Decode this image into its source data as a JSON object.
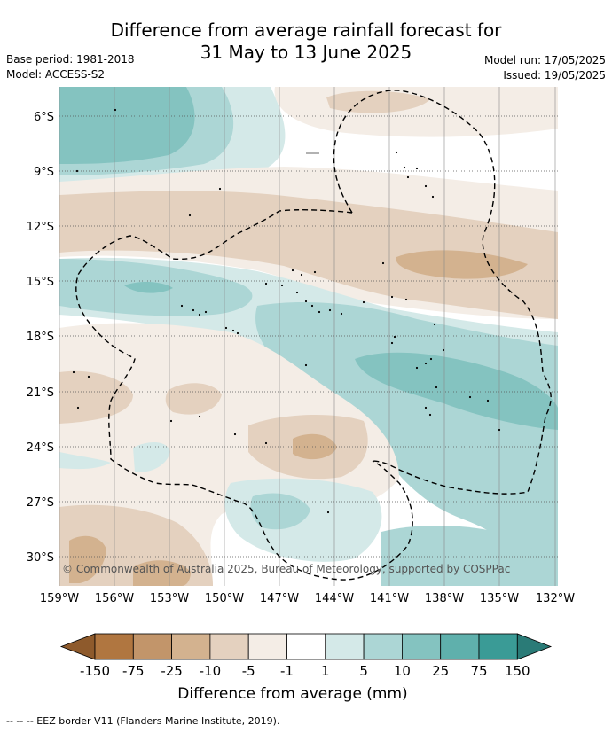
{
  "title": {
    "line1": "Difference from average rainfall forecast for",
    "line2": "31 May to 13 June 2025"
  },
  "meta_left": {
    "base_period": "Base period: 1981-2018",
    "model": "Model: ACCESS-S2"
  },
  "meta_right": {
    "model_run": "Model run: 17/05/2025",
    "issued": "Issued: 19/05/2025"
  },
  "map": {
    "copyright": "© Commonwealth of Australia 2025, Bureau of Meteorology, supported by COSPPac",
    "lat_labels": [
      "6°S",
      "9°S",
      "12°S",
      "15°S",
      "18°S",
      "21°S",
      "24°S",
      "27°S",
      "30°S"
    ],
    "lon_labels": [
      "159°W",
      "156°W",
      "153°W",
      "150°W",
      "147°W",
      "144°W",
      "141°W",
      "138°W",
      "135°W",
      "132°W"
    ]
  },
  "colorbar": {
    "tick_labels": [
      "-150",
      "-75",
      "-25",
      "-10",
      "-5",
      "-1",
      "1",
      "5",
      "10",
      "25",
      "75",
      "150"
    ],
    "colors": [
      "#8e5a2c",
      "#b07640",
      "#c2956a",
      "#d3b28f",
      "#e4d1bf",
      "#f4ede6",
      "#ffffff",
      "#d4e9e8",
      "#acd6d5",
      "#84c3c0",
      "#5fb0ac",
      "#3a9b96",
      "#2a7b77"
    ],
    "label": "Difference from average (mm)"
  },
  "footnote": "-- -- -- EEZ border V11 (Flanders Marine Institute, 2019)."
}
